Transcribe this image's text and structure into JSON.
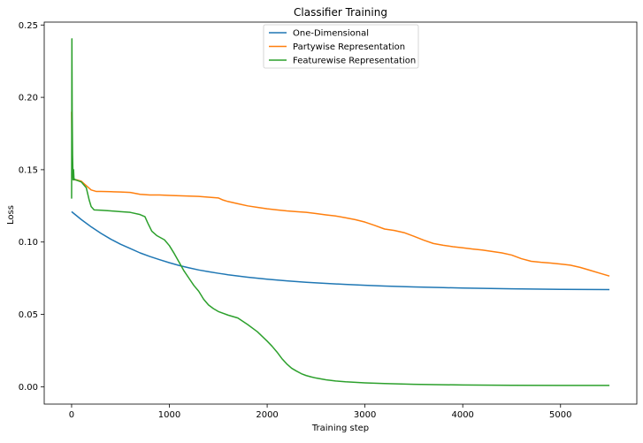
{
  "chart_data": {
    "type": "line",
    "title": "Classifier Training",
    "xlabel": "Training step",
    "ylabel": "Loss",
    "xlim": [
      -280,
      5780
    ],
    "ylim": [
      -0.012,
      0.252
    ],
    "xticks": [
      0,
      1000,
      2000,
      3000,
      4000,
      5000
    ],
    "yticks": [
      0.0,
      0.05,
      0.1,
      0.15,
      0.2,
      0.25
    ],
    "xtick_labels": [
      "0",
      "1000",
      "2000",
      "3000",
      "4000",
      "5000"
    ],
    "ytick_labels": [
      "0.00",
      "0.05",
      "0.10",
      "0.15",
      "0.20",
      "0.25"
    ],
    "legend_position": "upper-center",
    "grid": false,
    "series": [
      {
        "name": "One-Dimensional",
        "color": "#1f77b4",
        "x": [
          0,
          100,
          200,
          300,
          400,
          500,
          600,
          700,
          800,
          900,
          1000,
          1100,
          1200,
          1300,
          1400,
          1500,
          1600,
          1800,
          2000,
          2200,
          2400,
          2600,
          2800,
          3000,
          3200,
          3500,
          3800,
          4000,
          4500,
          5000,
          5500
        ],
        "y": [
          0.121,
          0.1155,
          0.1105,
          0.106,
          0.102,
          0.0985,
          0.0955,
          0.0925,
          0.09,
          0.0878,
          0.0857,
          0.0838,
          0.0822,
          0.0807,
          0.0795,
          0.0784,
          0.0774,
          0.0757,
          0.0743,
          0.0732,
          0.0722,
          0.0714,
          0.0707,
          0.0701,
          0.0696,
          0.069,
          0.0685,
          0.0682,
          0.0677,
          0.0673,
          0.0671
        ]
      },
      {
        "name": "Partywise Representation",
        "color": "#ff7f0e",
        "x": [
          0,
          5,
          10,
          20,
          50,
          100,
          150,
          200,
          250,
          300,
          400,
          500,
          600,
          700,
          800,
          900,
          1000,
          1100,
          1200,
          1300,
          1400,
          1500,
          1550,
          1600,
          1700,
          1800,
          1900,
          2000,
          2100,
          2200,
          2300,
          2400,
          2500,
          2600,
          2700,
          2800,
          2900,
          3000,
          3100,
          3200,
          3300,
          3400,
          3500,
          3600,
          3700,
          3800,
          3900,
          4000,
          4100,
          4200,
          4300,
          4400,
          4500,
          4600,
          4700,
          4800,
          4900,
          5000,
          5100,
          5200,
          5300,
          5400,
          5500
        ],
        "y": [
          0.19,
          0.16,
          0.145,
          0.143,
          0.143,
          0.142,
          0.139,
          0.136,
          0.135,
          0.135,
          0.1348,
          0.1346,
          0.1343,
          0.133,
          0.1325,
          0.1325,
          0.1322,
          0.132,
          0.1318,
          0.1315,
          0.131,
          0.1305,
          0.129,
          0.128,
          0.1265,
          0.125,
          0.124,
          0.123,
          0.1222,
          0.1215,
          0.121,
          0.1205,
          0.1197,
          0.1188,
          0.118,
          0.1168,
          0.1155,
          0.1138,
          0.1115,
          0.109,
          0.108,
          0.1065,
          0.104,
          0.1013,
          0.099,
          0.0978,
          0.0968,
          0.096,
          0.0952,
          0.0945,
          0.0935,
          0.0925,
          0.091,
          0.0885,
          0.0867,
          0.086,
          0.0855,
          0.0848,
          0.084,
          0.0825,
          0.0805,
          0.0785,
          0.0765
        ]
      },
      {
        "name": "Featurewise Representation",
        "color": "#2ca02c",
        "x": [
          0,
          3,
          6,
          10,
          15,
          20,
          25,
          30,
          40,
          60,
          100,
          150,
          180,
          200,
          230,
          300,
          400,
          500,
          600,
          700,
          750,
          780,
          820,
          870,
          950,
          1000,
          1050,
          1100,
          1150,
          1200,
          1250,
          1300,
          1350,
          1400,
          1450,
          1500,
          1600,
          1700,
          1800,
          1900,
          2000,
          2050,
          2100,
          2150,
          2200,
          2250,
          2300,
          2350,
          2400,
          2450,
          2500,
          2600,
          2700,
          2800,
          3000,
          3200,
          3500,
          3800,
          4000,
          4500,
          5000,
          5500
        ],
        "y": [
          0.13,
          0.2405,
          0.19,
          0.16,
          0.143,
          0.15,
          0.143,
          0.1435,
          0.143,
          0.1425,
          0.1415,
          0.1375,
          0.129,
          0.1245,
          0.1222,
          0.122,
          0.1215,
          0.121,
          0.1205,
          0.119,
          0.1175,
          0.113,
          0.1075,
          0.1045,
          0.1015,
          0.0975,
          0.092,
          0.086,
          0.08,
          0.075,
          0.07,
          0.066,
          0.0605,
          0.0565,
          0.054,
          0.052,
          0.0495,
          0.0475,
          0.043,
          0.038,
          0.0315,
          0.028,
          0.024,
          0.0195,
          0.0158,
          0.0128,
          0.0108,
          0.009,
          0.0077,
          0.0068,
          0.006,
          0.0048,
          0.004,
          0.0034,
          0.0027,
          0.0022,
          0.0017,
          0.0014,
          0.0012,
          0.001,
          0.0009,
          0.0009
        ]
      }
    ]
  }
}
